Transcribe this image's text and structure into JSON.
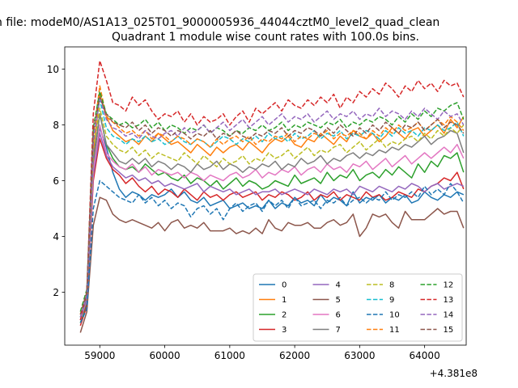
{
  "suptitle": "n file: modeM0/AS1A13_025T01_9000005936_44044cztM0_level2_quad_clean",
  "chart_data": {
    "type": "line",
    "title": "Quadrant 1 module wise count rates with 100.0s bins.",
    "xlabel": "",
    "ylabel": "",
    "x_offset_label": "+4.381e8",
    "xlim": [
      58460,
      64640
    ],
    "ylim": [
      0.1,
      10.8
    ],
    "xticks": [
      59000,
      60000,
      61000,
      62000,
      63000,
      64000
    ],
    "yticks": [
      2,
      4,
      6,
      8,
      10
    ],
    "x_start": 58700,
    "x_step": 100,
    "legend": {
      "loc": "lower-right",
      "ncol": 4
    },
    "grid": false,
    "series": [
      {
        "name": "0",
        "color": "#1f77b4",
        "dash": "solid",
        "values": [
          1.0,
          1.5,
          6.3,
          7.9,
          7.2,
          6.3,
          5.7,
          5.4,
          5.6,
          5.5,
          5.3,
          5.5,
          5.4,
          5.5,
          5.7,
          5.4,
          5.6,
          5.3,
          5.2,
          5.4,
          5.1,
          5.2,
          5.3,
          5.0,
          5.1,
          5.2,
          5.0,
          5.1,
          5.0,
          5.3,
          5.0,
          5.2,
          5.1,
          5.4,
          5.2,
          5.3,
          5.1,
          5.5,
          5.2,
          5.4,
          5.3,
          5.1,
          5.6,
          5.2,
          5.4,
          5.3,
          5.5,
          5.2,
          5.4,
          5.3,
          5.5,
          5.2,
          5.3,
          5.6,
          5.4,
          5.3,
          5.5,
          5.4,
          5.6,
          5.5
        ]
      },
      {
        "name": "1",
        "color": "#ff7f0e",
        "dash": "solid",
        "values": [
          1.1,
          1.9,
          7.0,
          9.1,
          8.3,
          7.8,
          7.6,
          7.4,
          7.5,
          7.3,
          7.6,
          7.4,
          7.7,
          7.5,
          7.3,
          7.4,
          7.2,
          7.0,
          7.3,
          7.1,
          6.9,
          7.2,
          7.0,
          7.2,
          7.3,
          7.1,
          7.4,
          7.2,
          7.0,
          7.3,
          7.5,
          7.4,
          7.6,
          7.3,
          7.2,
          7.5,
          7.4,
          7.7,
          7.5,
          7.3,
          7.6,
          7.4,
          7.8,
          7.6,
          7.5,
          7.7,
          7.4,
          7.6,
          7.9,
          7.7,
          7.5,
          7.8,
          7.9,
          7.6,
          7.8,
          8.0,
          7.7,
          8.2,
          7.9,
          8.3
        ]
      },
      {
        "name": "2",
        "color": "#2ca02c",
        "dash": "solid",
        "values": [
          0.9,
          1.6,
          6.6,
          8.4,
          7.3,
          6.8,
          6.5,
          6.4,
          6.5,
          6.3,
          6.6,
          6.4,
          6.2,
          6.3,
          6.1,
          6.0,
          6.2,
          5.9,
          6.1,
          6.0,
          5.8,
          6.0,
          5.7,
          5.9,
          6.1,
          5.8,
          6.0,
          5.9,
          5.7,
          5.8,
          6.0,
          5.9,
          5.8,
          6.2,
          5.9,
          6.0,
          6.1,
          5.9,
          6.3,
          6.0,
          6.2,
          6.1,
          6.4,
          6.0,
          6.2,
          6.3,
          6.1,
          6.4,
          6.2,
          6.5,
          6.3,
          6.1,
          6.6,
          6.3,
          6.7,
          6.5,
          6.9,
          6.8,
          7.0,
          6.3
        ]
      },
      {
        "name": "3",
        "color": "#d62728",
        "dash": "solid",
        "values": [
          0.8,
          1.5,
          6.0,
          7.5,
          6.8,
          6.4,
          6.2,
          5.9,
          6.1,
          5.8,
          5.6,
          5.8,
          5.5,
          5.7,
          5.6,
          5.4,
          5.7,
          5.5,
          5.3,
          5.6,
          5.4,
          5.5,
          5.3,
          5.5,
          5.6,
          5.4,
          5.5,
          5.6,
          5.3,
          5.5,
          5.4,
          5.6,
          5.5,
          5.3,
          5.4,
          5.6,
          5.3,
          5.5,
          5.4,
          5.6,
          5.3,
          5.5,
          5.4,
          5.3,
          5.6,
          5.4,
          5.5,
          5.3,
          5.4,
          5.6,
          5.5,
          5.4,
          5.7,
          5.6,
          5.8,
          5.9,
          6.1,
          6.0,
          6.3,
          5.7
        ]
      },
      {
        "name": "4",
        "color": "#9467bd",
        "dash": "solid",
        "values": [
          1.0,
          1.7,
          6.2,
          7.7,
          6.9,
          6.5,
          6.3,
          6.1,
          6.2,
          6.0,
          6.1,
          5.9,
          6.0,
          5.8,
          5.9,
          5.8,
          5.7,
          5.8,
          5.9,
          5.6,
          5.8,
          5.7,
          5.6,
          5.7,
          5.5,
          5.6,
          5.7,
          5.5,
          5.6,
          5.6,
          5.7,
          5.5,
          5.6,
          5.7,
          5.6,
          5.5,
          5.7,
          5.6,
          5.5,
          5.7,
          5.6,
          5.7,
          5.5,
          5.8,
          5.7,
          5.6,
          5.8,
          5.7,
          5.6,
          5.8,
          5.7,
          5.9,
          5.8,
          5.6,
          5.8,
          5.9,
          5.7,
          5.8,
          5.9,
          5.8
        ]
      },
      {
        "name": "5",
        "color": "#8c564b",
        "dash": "solid",
        "values": [
          0.55,
          1.3,
          4.4,
          5.4,
          5.3,
          4.8,
          4.6,
          4.5,
          4.6,
          4.5,
          4.4,
          4.3,
          4.5,
          4.2,
          4.5,
          4.6,
          4.3,
          4.4,
          4.3,
          4.5,
          4.2,
          4.2,
          4.2,
          4.3,
          4.1,
          4.2,
          4.1,
          4.3,
          4.1,
          4.6,
          4.3,
          4.2,
          4.5,
          4.4,
          4.4,
          4.5,
          4.3,
          4.3,
          4.5,
          4.6,
          4.4,
          4.5,
          4.8,
          4.0,
          4.3,
          4.8,
          4.7,
          4.8,
          4.5,
          4.3,
          4.9,
          4.6,
          4.6,
          4.6,
          4.8,
          5.0,
          4.8,
          4.9,
          4.9,
          4.3
        ]
      },
      {
        "name": "6",
        "color": "#e377c2",
        "dash": "solid",
        "values": [
          1.0,
          1.8,
          6.4,
          8.0,
          7.0,
          6.7,
          6.5,
          6.4,
          6.6,
          6.3,
          6.5,
          6.2,
          6.4,
          6.3,
          6.2,
          6.3,
          6.1,
          6.3,
          6.2,
          6.0,
          6.2,
          6.1,
          6.0,
          6.2,
          6.3,
          6.1,
          6.2,
          6.4,
          6.1,
          6.3,
          6.2,
          6.4,
          6.3,
          6.5,
          6.2,
          6.4,
          6.5,
          6.3,
          6.6,
          6.4,
          6.5,
          6.3,
          6.6,
          6.5,
          6.7,
          6.4,
          6.6,
          6.8,
          6.5,
          6.7,
          6.9,
          6.6,
          6.8,
          7.0,
          6.8,
          7.0,
          7.2,
          7.0,
          7.3,
          6.8
        ]
      },
      {
        "name": "7",
        "color": "#7f7f7f",
        "dash": "solid",
        "values": [
          1.1,
          1.8,
          6.8,
          8.4,
          7.3,
          7.0,
          6.7,
          6.6,
          6.8,
          6.6,
          6.8,
          6.5,
          6.7,
          6.6,
          6.4,
          6.6,
          6.5,
          6.3,
          6.6,
          6.4,
          6.5,
          6.7,
          6.4,
          6.6,
          6.5,
          6.3,
          6.5,
          6.4,
          6.6,
          6.5,
          6.7,
          6.4,
          6.6,
          6.5,
          6.8,
          6.6,
          6.7,
          6.9,
          6.6,
          6.8,
          6.7,
          6.9,
          7.0,
          6.8,
          7.0,
          6.9,
          7.1,
          7.0,
          7.2,
          7.1,
          7.3,
          7.2,
          7.4,
          7.6,
          7.3,
          7.5,
          7.6,
          7.8,
          7.7,
          7.0
        ]
      },
      {
        "name": "8",
        "color": "#bcbd22",
        "dash": "dashed",
        "values": [
          1.2,
          2.0,
          7.2,
          8.6,
          7.6,
          7.3,
          7.1,
          7.0,
          7.2,
          6.9,
          7.1,
          6.8,
          7.0,
          6.9,
          6.8,
          6.7,
          7.0,
          6.8,
          6.6,
          6.9,
          6.7,
          6.5,
          6.8,
          6.6,
          6.7,
          6.9,
          6.6,
          6.8,
          6.7,
          7.0,
          6.8,
          6.9,
          7.1,
          6.8,
          7.0,
          7.2,
          6.9,
          7.1,
          7.0,
          7.2,
          7.3,
          7.0,
          7.2,
          7.4,
          7.1,
          7.3,
          7.5,
          7.2,
          7.4,
          7.3,
          7.5,
          7.6,
          7.4,
          7.7,
          7.5,
          7.8,
          7.6,
          7.9,
          7.7,
          8.0
        ]
      },
      {
        "name": "9",
        "color": "#17becf",
        "dash": "dashed",
        "values": [
          1.1,
          1.9,
          7.5,
          8.9,
          7.9,
          7.6,
          7.5,
          7.3,
          7.5,
          7.4,
          7.6,
          7.4,
          7.5,
          7.3,
          7.4,
          7.6,
          7.4,
          7.3,
          7.5,
          7.4,
          7.2,
          7.4,
          7.6,
          7.5,
          7.3,
          7.5,
          7.4,
          7.6,
          7.4,
          7.7,
          7.5,
          7.6,
          7.4,
          7.7,
          7.5,
          7.6,
          7.8,
          7.5,
          7.7,
          7.6,
          7.8,
          7.5,
          7.7,
          7.6,
          7.8,
          7.7,
          7.5,
          7.8,
          7.6,
          7.9,
          7.7,
          7.8,
          7.6,
          7.9,
          7.8,
          8.0,
          7.8,
          7.9,
          8.1,
          7.6
        ]
      },
      {
        "name": "10",
        "color": "#1f77b4",
        "dash": "dashed",
        "values": [
          0.9,
          1.4,
          5.0,
          6.0,
          5.8,
          5.6,
          5.4,
          5.3,
          5.2,
          5.5,
          5.2,
          5.4,
          5.1,
          5.3,
          5.0,
          5.2,
          5.1,
          4.7,
          5.0,
          5.1,
          4.8,
          5.0,
          4.6,
          5.0,
          5.2,
          4.9,
          5.1,
          5.2,
          4.9,
          5.3,
          5.1,
          5.3,
          5.0,
          5.4,
          5.1,
          5.2,
          5.3,
          5.0,
          5.3,
          5.2,
          5.4,
          5.1,
          5.3,
          5.4,
          5.2,
          5.4,
          5.3,
          5.6,
          5.3,
          5.5,
          5.4,
          5.6,
          5.4,
          5.8,
          5.5,
          5.7,
          5.5,
          5.9,
          5.6,
          5.2
        ]
      },
      {
        "name": "11",
        "color": "#ff7f0e",
        "dash": "dashed",
        "values": [
          1.2,
          2.0,
          7.6,
          9.4,
          8.3,
          8.1,
          7.9,
          7.7,
          7.8,
          7.6,
          7.8,
          7.5,
          7.7,
          7.6,
          7.4,
          7.6,
          7.5,
          7.3,
          7.5,
          7.4,
          7.2,
          7.5,
          7.3,
          7.5,
          7.6,
          7.4,
          7.6,
          7.3,
          7.5,
          7.4,
          7.6,
          7.5,
          7.7,
          7.4,
          7.6,
          7.5,
          7.7,
          7.6,
          7.8,
          7.5,
          7.7,
          7.6,
          7.8,
          7.7,
          7.5,
          7.8,
          7.6,
          7.9,
          7.7,
          8.0,
          7.8,
          7.9,
          8.1,
          7.8,
          8.0,
          8.2,
          8.0,
          8.3,
          8.1,
          7.8
        ]
      },
      {
        "name": "12",
        "color": "#2ca02c",
        "dash": "dashed",
        "values": [
          1.3,
          2.1,
          7.9,
          9.2,
          8.4,
          8.2,
          8.0,
          8.1,
          7.9,
          8.0,
          8.2,
          7.9,
          8.1,
          7.8,
          8.0,
          7.9,
          7.7,
          7.9,
          7.8,
          8.0,
          7.7,
          7.9,
          7.8,
          7.6,
          7.8,
          7.7,
          7.9,
          7.8,
          8.0,
          7.8,
          7.9,
          8.1,
          7.8,
          8.0,
          7.9,
          8.1,
          8.0,
          7.9,
          8.1,
          8.0,
          8.2,
          7.9,
          8.1,
          8.0,
          8.2,
          8.1,
          8.3,
          8.2,
          8.0,
          8.3,
          8.1,
          8.4,
          8.2,
          8.5,
          8.3,
          8.6,
          8.5,
          8.7,
          8.8,
          8.2
        ]
      },
      {
        "name": "13",
        "color": "#d62728",
        "dash": "dashed",
        "values": [
          1.0,
          2.0,
          8.4,
          10.3,
          9.6,
          8.8,
          8.7,
          8.5,
          9.0,
          8.7,
          8.9,
          8.5,
          8.2,
          8.4,
          8.3,
          8.5,
          8.1,
          8.4,
          8.0,
          8.3,
          8.1,
          8.2,
          8.4,
          8.0,
          8.3,
          8.5,
          8.1,
          8.6,
          8.4,
          8.6,
          8.8,
          8.5,
          8.9,
          8.7,
          8.6,
          8.9,
          8.7,
          9.0,
          8.8,
          9.1,
          8.6,
          9.0,
          8.8,
          9.2,
          9.0,
          9.3,
          9.1,
          9.5,
          9.3,
          9.0,
          9.4,
          9.2,
          9.6,
          9.3,
          9.5,
          9.2,
          9.6,
          9.4,
          9.5,
          9.0
        ]
      },
      {
        "name": "14",
        "color": "#9467bd",
        "dash": "dashed",
        "values": [
          1.1,
          1.9,
          7.4,
          9.0,
          8.2,
          7.9,
          7.8,
          7.6,
          7.7,
          7.5,
          7.8,
          7.6,
          7.5,
          7.7,
          7.8,
          7.6,
          7.9,
          7.7,
          7.8,
          8.0,
          7.7,
          7.9,
          8.1,
          7.8,
          8.0,
          8.2,
          7.9,
          8.1,
          8.3,
          8.0,
          8.2,
          8.4,
          8.1,
          8.3,
          8.2,
          8.4,
          8.1,
          8.3,
          8.5,
          8.2,
          8.4,
          8.3,
          8.5,
          8.2,
          8.4,
          8.3,
          8.6,
          8.3,
          8.5,
          8.4,
          8.2,
          8.5,
          8.3,
          8.6,
          8.4,
          8.2,
          8.5,
          8.3,
          8.4,
          8.0
        ]
      },
      {
        "name": "15",
        "color": "#8c564b",
        "dash": "dashed",
        "values": [
          1.2,
          2.0,
          7.8,
          9.0,
          8.4,
          8.1,
          8.0,
          7.9,
          8.1,
          7.8,
          8.0,
          7.7,
          7.9,
          7.8,
          7.6,
          7.8,
          7.7,
          7.5,
          7.7,
          7.6,
          7.8,
          7.5,
          7.7,
          7.6,
          7.8,
          7.6,
          7.5,
          7.7,
          7.6,
          7.8,
          7.7,
          7.9,
          7.6,
          7.8,
          7.7,
          7.9,
          7.8,
          7.6,
          7.9,
          7.7,
          8.0,
          7.8,
          7.6,
          7.9,
          7.7,
          8.0,
          7.8,
          8.1,
          7.9,
          7.7,
          8.0,
          7.9,
          8.1,
          7.8,
          8.0,
          8.2,
          7.9,
          8.1,
          8.0,
          7.7
        ]
      }
    ]
  }
}
